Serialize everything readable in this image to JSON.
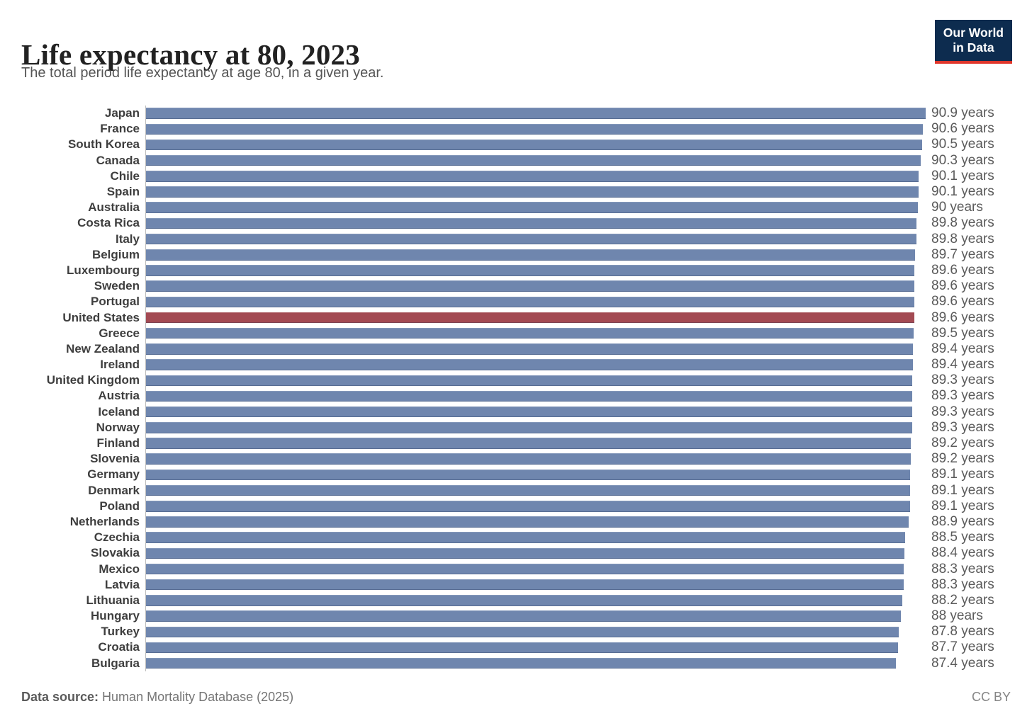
{
  "header": {
    "title": "Life expectancy at 80, 2023",
    "subtitle": "The total period life expectancy at age 80, in a given year."
  },
  "logo": {
    "line1": "Our World",
    "line2": "in Data",
    "bg_color": "#0d2c4f",
    "accent_color": "#e0362b"
  },
  "chart_data": {
    "type": "bar",
    "orientation": "horizontal",
    "title": "Life expectancy at 80, 2023",
    "unit": "years",
    "xlim": [
      0,
      90.9
    ],
    "grid": false,
    "legend": "none",
    "bar_color": "#6f86ae",
    "highlight_color": "#a34a53",
    "highlighted_entity": "United States",
    "rows": [
      {
        "label": "Japan",
        "value": 90.9,
        "display": "90.9 years",
        "highlight": false
      },
      {
        "label": "France",
        "value": 90.6,
        "display": "90.6 years",
        "highlight": false
      },
      {
        "label": "South Korea",
        "value": 90.5,
        "display": "90.5 years",
        "highlight": false
      },
      {
        "label": "Canada",
        "value": 90.3,
        "display": "90.3 years",
        "highlight": false
      },
      {
        "label": "Chile",
        "value": 90.1,
        "display": "90.1 years",
        "highlight": false
      },
      {
        "label": "Spain",
        "value": 90.1,
        "display": "90.1 years",
        "highlight": false
      },
      {
        "label": "Australia",
        "value": 90,
        "display": "90 years",
        "highlight": false
      },
      {
        "label": "Costa Rica",
        "value": 89.8,
        "display": "89.8 years",
        "highlight": false
      },
      {
        "label": "Italy",
        "value": 89.8,
        "display": "89.8 years",
        "highlight": false
      },
      {
        "label": "Belgium",
        "value": 89.7,
        "display": "89.7 years",
        "highlight": false
      },
      {
        "label": "Luxembourg",
        "value": 89.6,
        "display": "89.6 years",
        "highlight": false
      },
      {
        "label": "Sweden",
        "value": 89.6,
        "display": "89.6 years",
        "highlight": false
      },
      {
        "label": "Portugal",
        "value": 89.6,
        "display": "89.6 years",
        "highlight": false
      },
      {
        "label": "United States",
        "value": 89.6,
        "display": "89.6 years",
        "highlight": true
      },
      {
        "label": "Greece",
        "value": 89.5,
        "display": "89.5 years",
        "highlight": false
      },
      {
        "label": "New Zealand",
        "value": 89.4,
        "display": "89.4 years",
        "highlight": false
      },
      {
        "label": "Ireland",
        "value": 89.4,
        "display": "89.4 years",
        "highlight": false
      },
      {
        "label": "United Kingdom",
        "value": 89.3,
        "display": "89.3 years",
        "highlight": false
      },
      {
        "label": "Austria",
        "value": 89.3,
        "display": "89.3 years",
        "highlight": false
      },
      {
        "label": "Iceland",
        "value": 89.3,
        "display": "89.3 years",
        "highlight": false
      },
      {
        "label": "Norway",
        "value": 89.3,
        "display": "89.3 years",
        "highlight": false
      },
      {
        "label": "Finland",
        "value": 89.2,
        "display": "89.2 years",
        "highlight": false
      },
      {
        "label": "Slovenia",
        "value": 89.2,
        "display": "89.2 years",
        "highlight": false
      },
      {
        "label": "Germany",
        "value": 89.1,
        "display": "89.1 years",
        "highlight": false
      },
      {
        "label": "Denmark",
        "value": 89.1,
        "display": "89.1 years",
        "highlight": false
      },
      {
        "label": "Poland",
        "value": 89.1,
        "display": "89.1 years",
        "highlight": false
      },
      {
        "label": "Netherlands",
        "value": 88.9,
        "display": "88.9 years",
        "highlight": false
      },
      {
        "label": "Czechia",
        "value": 88.5,
        "display": "88.5 years",
        "highlight": false
      },
      {
        "label": "Slovakia",
        "value": 88.4,
        "display": "88.4 years",
        "highlight": false
      },
      {
        "label": "Mexico",
        "value": 88.3,
        "display": "88.3 years",
        "highlight": false
      },
      {
        "label": "Latvia",
        "value": 88.3,
        "display": "88.3 years",
        "highlight": false
      },
      {
        "label": "Lithuania",
        "value": 88.2,
        "display": "88.2 years",
        "highlight": false
      },
      {
        "label": "Hungary",
        "value": 88,
        "display": "88 years",
        "highlight": false
      },
      {
        "label": "Turkey",
        "value": 87.8,
        "display": "87.8 years",
        "highlight": false
      },
      {
        "label": "Croatia",
        "value": 87.7,
        "display": "87.7 years",
        "highlight": false
      },
      {
        "label": "Bulgaria",
        "value": 87.4,
        "display": "87.4 years",
        "highlight": false
      }
    ]
  },
  "footer": {
    "source_label": "Data source:",
    "source_text": " Human Mortality Database (2025)",
    "license": "CC BY"
  }
}
